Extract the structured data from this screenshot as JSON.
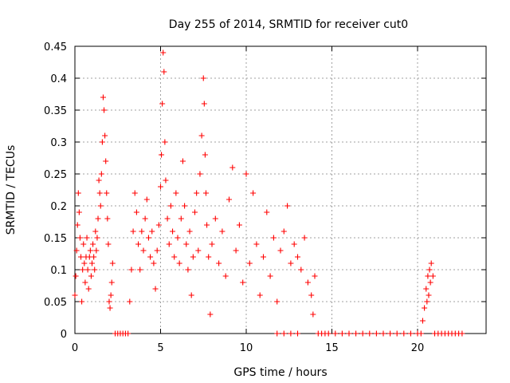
{
  "chart_data": {
    "type": "scatter",
    "title": "Day 255 of 2014, SRMTID for receiver cut0",
    "xlabel": "GPS time / hours",
    "ylabel": "SRMTID / TECUs",
    "xlim": [
      0,
      24
    ],
    "ylim": [
      0,
      0.45
    ],
    "x_ticks": [
      0,
      5,
      10,
      15,
      20
    ],
    "x_tick_labels": [
      "0",
      "5",
      "10",
      "15",
      "20"
    ],
    "y_ticks": [
      0,
      0.05,
      0.1,
      0.15,
      0.2,
      0.25,
      0.3,
      0.35,
      0.4,
      0.45
    ],
    "y_tick_labels": [
      "0",
      "0.05",
      "0.1",
      "0.15",
      "0.2",
      "0.25",
      "0.3",
      "0.35",
      "0.4",
      "0.45"
    ],
    "grid": true,
    "marker": "+",
    "color": "#ff0000",
    "series": [
      {
        "name": "SRMTID",
        "x": [
          0.0,
          0.05,
          0.1,
          0.15,
          0.2,
          0.25,
          0.3,
          0.35,
          0.4,
          0.45,
          0.5,
          0.55,
          0.6,
          0.65,
          0.7,
          0.75,
          0.8,
          0.85,
          0.9,
          0.95,
          1.0,
          1.05,
          1.1,
          1.15,
          1.2,
          1.25,
          1.3,
          1.35,
          1.4,
          1.45,
          1.5,
          1.55,
          1.6,
          1.65,
          1.7,
          1.75,
          1.8,
          1.85,
          1.9,
          1.95,
          2.0,
          2.05,
          2.1,
          2.15,
          3.2,
          3.3,
          3.4,
          3.5,
          3.6,
          3.7,
          3.8,
          3.9,
          4.0,
          4.1,
          4.2,
          4.3,
          4.4,
          4.5,
          4.6,
          4.7,
          4.8,
          4.9,
          5.0,
          5.05,
          5.1,
          5.15,
          5.2,
          5.25,
          5.3,
          5.4,
          5.5,
          5.6,
          5.7,
          5.8,
          5.9,
          6.0,
          6.1,
          6.2,
          6.3,
          6.4,
          6.5,
          6.6,
          6.7,
          6.8,
          6.9,
          7.0,
          7.1,
          7.2,
          7.3,
          7.4,
          7.5,
          7.55,
          7.6,
          7.65,
          7.7,
          7.8,
          7.9,
          8.0,
          8.2,
          8.4,
          8.6,
          8.8,
          9.0,
          9.2,
          9.4,
          9.6,
          9.8,
          10.0,
          10.2,
          10.4,
          10.6,
          10.8,
          11.0,
          11.2,
          11.4,
          11.6,
          11.8,
          12.0,
          12.2,
          12.4,
          12.6,
          12.8,
          13.0,
          13.2,
          13.4,
          13.6,
          13.8,
          13.9,
          14.0,
          2.2,
          2.35,
          2.5,
          2.65,
          2.8,
          2.95,
          3.1,
          11.8,
          12.2,
          12.6,
          13.0,
          14.2,
          14.4,
          14.6,
          14.8,
          15.2,
          15.6,
          16.0,
          16.4,
          16.8,
          17.2,
          17.6,
          18.0,
          18.4,
          18.8,
          19.2,
          19.6,
          20.0,
          20.2,
          20.3,
          20.4,
          20.5,
          20.55,
          20.6,
          20.65,
          20.7,
          20.75,
          20.8,
          20.9,
          21.0,
          21.2,
          21.4,
          21.6,
          21.8,
          22.0,
          22.2,
          22.4,
          22.6
        ],
        "y": [
          0.06,
          0.09,
          0.13,
          0.17,
          0.22,
          0.19,
          0.15,
          0.12,
          0.05,
          0.1,
          0.14,
          0.11,
          0.08,
          0.12,
          0.15,
          0.1,
          0.07,
          0.12,
          0.13,
          0.09,
          0.11,
          0.14,
          0.12,
          0.1,
          0.16,
          0.13,
          0.15,
          0.18,
          0.24,
          0.22,
          0.2,
          0.25,
          0.3,
          0.37,
          0.35,
          0.31,
          0.27,
          0.22,
          0.18,
          0.14,
          0.05,
          0.04,
          0.06,
          0.08,
          0.05,
          0.1,
          0.16,
          0.22,
          0.19,
          0.14,
          0.1,
          0.16,
          0.13,
          0.18,
          0.21,
          0.15,
          0.12,
          0.16,
          0.11,
          0.07,
          0.13,
          0.17,
          0.23,
          0.28,
          0.36,
          0.44,
          0.41,
          0.3,
          0.24,
          0.18,
          0.14,
          0.2,
          0.16,
          0.12,
          0.22,
          0.15,
          0.11,
          0.18,
          0.27,
          0.2,
          0.14,
          0.1,
          0.16,
          0.06,
          0.12,
          0.19,
          0.22,
          0.13,
          0.25,
          0.31,
          0.4,
          0.36,
          0.28,
          0.22,
          0.17,
          0.12,
          0.03,
          0.14,
          0.18,
          0.11,
          0.16,
          0.09,
          0.21,
          0.26,
          0.13,
          0.17,
          0.08,
          0.25,
          0.11,
          0.22,
          0.14,
          0.06,
          0.12,
          0.19,
          0.09,
          0.15,
          0.05,
          0.13,
          0.16,
          0.2,
          0.11,
          0.14,
          0.12,
          0.1,
          0.15,
          0.08,
          0.06,
          0.03,
          0.09,
          0.11,
          0.0,
          0.0,
          0.0,
          0.0,
          0.0,
          0.0,
          0.0,
          0.0,
          0.0,
          0.0,
          0.0,
          0.0,
          0.0,
          0.0,
          0.0,
          0.0,
          0.0,
          0.0,
          0.0,
          0.0,
          0.0,
          0.0,
          0.0,
          0.0,
          0.0,
          0.0,
          0.0,
          0.0,
          0.02,
          0.04,
          0.07,
          0.05,
          0.09,
          0.06,
          0.1,
          0.08,
          0.11,
          0.09,
          0.0,
          0.0,
          0.0,
          0.0,
          0.0,
          0.0,
          0.0,
          0.0,
          0.0
        ]
      }
    ]
  }
}
